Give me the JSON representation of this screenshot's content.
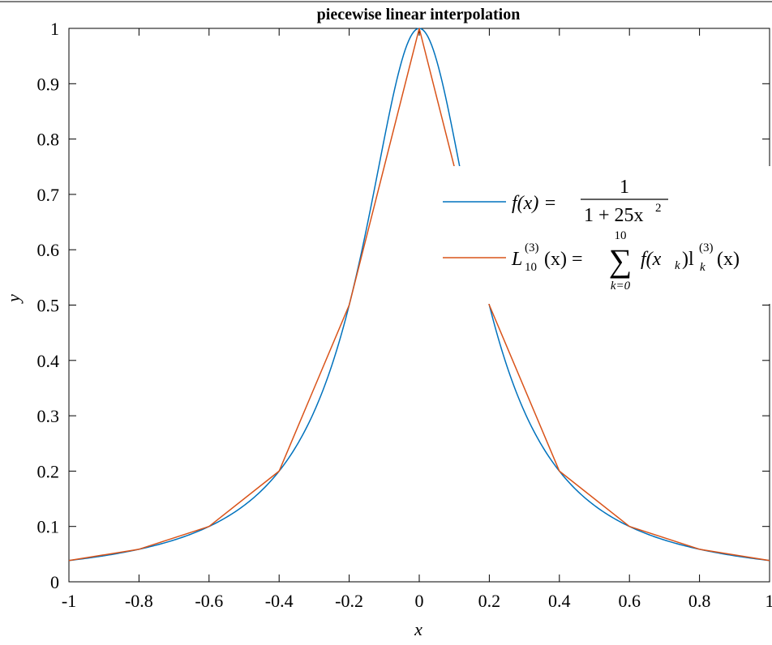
{
  "chart_data": {
    "type": "line",
    "title": "piecewise linear interpolation",
    "xlabel": "x",
    "ylabel": "y",
    "xlim": [
      -1,
      1
    ],
    "ylim": [
      0,
      1
    ],
    "xticks": [
      -1,
      -0.8,
      -0.6,
      -0.4,
      -0.2,
      0,
      0.2,
      0.4,
      0.6,
      0.8,
      1
    ],
    "yticks": [
      0,
      0.1,
      0.2,
      0.3,
      0.4,
      0.5,
      0.6,
      0.7,
      0.8,
      0.9,
      1
    ],
    "grid": false,
    "legend_position": "right, upper middle",
    "series": [
      {
        "name": "f(x) = 1 / (1 + 25x²)",
        "color": "#0072BD",
        "function": "1/(1+25*x^2)",
        "x": [
          -1,
          -0.9,
          -0.8,
          -0.7,
          -0.6,
          -0.5,
          -0.4,
          -0.35,
          -0.3,
          -0.25,
          -0.2,
          -0.15,
          -0.1,
          -0.05,
          0,
          0.05,
          0.1,
          0.15,
          0.2,
          0.25,
          0.3,
          0.35,
          0.4,
          0.5,
          0.6,
          0.7,
          0.8,
          0.9,
          1
        ],
        "y": [
          0.0385,
          0.0471,
          0.0588,
          0.0755,
          0.1,
          0.1379,
          0.2,
          0.2462,
          0.3077,
          0.3902,
          0.5,
          0.64,
          0.8,
          0.9412,
          1,
          0.9412,
          0.8,
          0.64,
          0.5,
          0.3902,
          0.3077,
          0.2462,
          0.2,
          0.1379,
          0.1,
          0.0755,
          0.0588,
          0.0471,
          0.0385
        ]
      },
      {
        "name": "L10(3)(x) = Σ k=0..10 f(xk) lk(3)(x)",
        "color": "#D95319",
        "x": [
          -1,
          -0.8,
          -0.6,
          -0.4,
          -0.2,
          0,
          0.2,
          0.4,
          0.6,
          0.8,
          1
        ],
        "y": [
          0.0385,
          0.0588,
          0.1,
          0.2,
          0.5,
          1,
          0.5,
          0.2,
          0.1,
          0.0588,
          0.0385
        ]
      }
    ],
    "legend": {
      "f_lhs": "f(x) =",
      "f_num": "1",
      "f_den": "1 + 25x",
      "f_den_sup": "2",
      "l_name": "L",
      "l_sup": "(3)",
      "l_sub": "10",
      "l_arg": "(x) =",
      "sum_upper": "10",
      "sum_symbol": "∑",
      "sum_lower": "k=0",
      "l_rhs_a": "f(x",
      "l_rhs_a_sub": "k",
      "l_rhs_b": ")l",
      "l_rhs_b_sup": "(3)",
      "l_rhs_b_sub": "k",
      "l_rhs_c": "(x)"
    }
  }
}
